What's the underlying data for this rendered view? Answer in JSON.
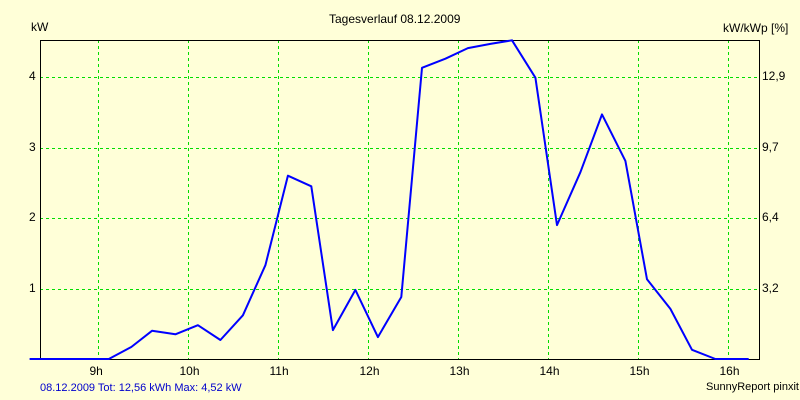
{
  "chart_data": {
    "type": "line",
    "title": "Tagesverlauf 08.12.2009",
    "ylabel": "kW",
    "ylabel_right": "kW/kWp [%]",
    "xlabel": "",
    "x_ticks": [
      "9h",
      "10h",
      "11h",
      "12h",
      "13h",
      "14h",
      "15h",
      "16h"
    ],
    "y_ticks": [
      "1",
      "2",
      "3",
      "4"
    ],
    "y_ticks_right": [
      "3,2",
      "6,4",
      "9,7",
      "12,9"
    ],
    "xlim": [
      8.24,
      16.23
    ],
    "ylim": [
      0,
      4.52
    ],
    "grid": true,
    "line_color": "#0000FF",
    "grid_color": "#00DD00",
    "series": [
      {
        "name": "kW",
        "x": [
          8.24,
          9.12,
          9.37,
          9.6,
          9.86,
          10.11,
          10.36,
          10.61,
          10.86,
          11.11,
          11.37,
          11.61,
          11.86,
          12.11,
          12.37,
          12.6,
          12.86,
          13.11,
          13.36,
          13.6,
          13.86,
          14.1,
          14.36,
          14.6,
          14.86,
          15.1,
          15.36,
          15.6,
          15.86,
          16.23
        ],
        "values": [
          0,
          0,
          0.17,
          0.4,
          0.35,
          0.48,
          0.27,
          0.62,
          1.33,
          2.6,
          2.45,
          0.41,
          0.98,
          0.31,
          0.88,
          4.13,
          4.26,
          4.41,
          4.47,
          4.52,
          3.99,
          1.9,
          2.65,
          3.47,
          2.81,
          1.13,
          0.71,
          0.13,
          0,
          0
        ]
      }
    ]
  },
  "header": {
    "title": "Tagesverlauf 08.12.2009",
    "left_unit": "kW",
    "right_unit": "kW/kWp [%]"
  },
  "footer": {
    "summary": "08.12.2009 Tot: 12,56 kWh Max: 4,52 kW",
    "brand": "SunnyReport pinxit"
  }
}
